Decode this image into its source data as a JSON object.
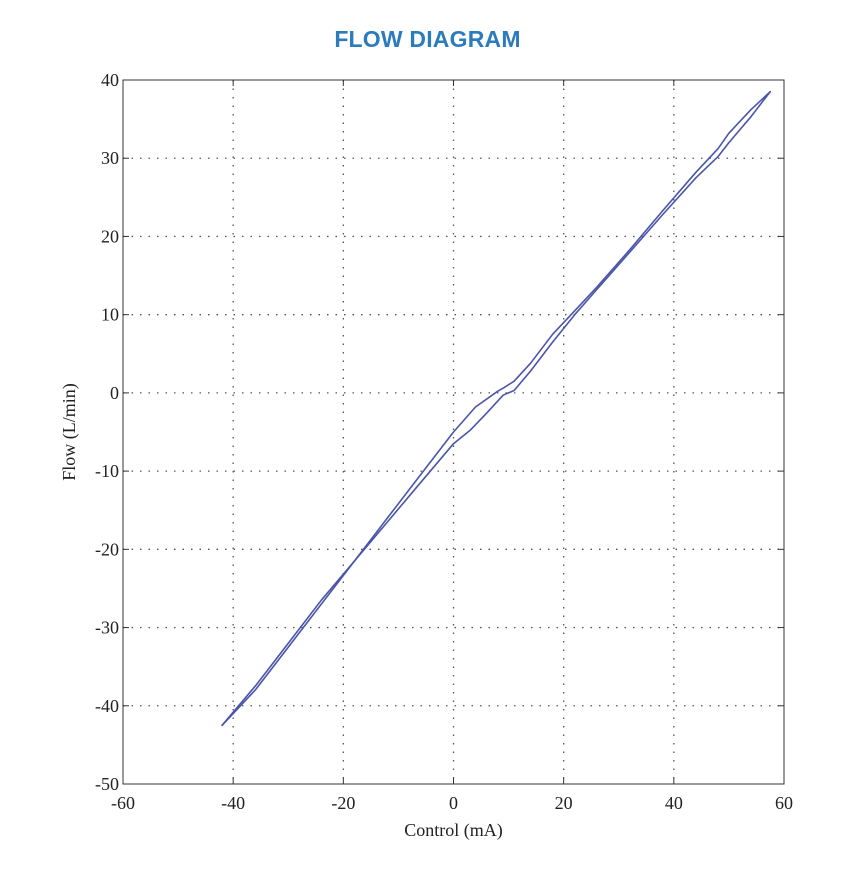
{
  "chart_data": {
    "type": "line",
    "title": "FLOW DIAGRAM",
    "xlabel": "Control (mA)",
    "ylabel": "Flow (L/min)",
    "xlim": [
      -60,
      60
    ],
    "ylim": [
      -50,
      40
    ],
    "xticks": [
      -60,
      -40,
      -20,
      0,
      20,
      40,
      60
    ],
    "yticks": [
      -50,
      -40,
      -30,
      -20,
      -10,
      0,
      10,
      20,
      30,
      40
    ],
    "grid": true,
    "legend": "none",
    "series": [
      {
        "color": "#4a55a8",
        "x": [
          -42,
          -36,
          -30,
          -24,
          -18,
          -12,
          -6,
          0,
          4,
          8,
          9,
          11,
          14,
          18,
          22,
          26,
          32,
          38,
          44,
          48,
          50,
          54,
          57.5
        ],
        "y": [
          -42.5,
          -37.5,
          -32,
          -26.5,
          -21.5,
          -16,
          -10.5,
          -5,
          -1.8,
          0.2,
          0.6,
          1.5,
          3.8,
          7.5,
          10.5,
          13.5,
          18.3,
          23.3,
          28.2,
          31.2,
          33.2,
          36.2,
          38.5
        ]
      },
      {
        "color": "#4a55a8",
        "x": [
          57.5,
          54,
          50,
          48,
          44,
          38,
          32,
          26,
          22,
          18,
          14,
          11,
          9,
          6,
          3,
          0,
          -6,
          -12,
          -18,
          -24,
          -30,
          -36,
          -42
        ],
        "y": [
          38.5,
          35.3,
          32,
          30.2,
          27.5,
          22.8,
          18,
          13.2,
          10,
          6.5,
          2.8,
          0.3,
          -0.3,
          -2.6,
          -4.8,
          -6.5,
          -11.5,
          -16.5,
          -21.5,
          -27,
          -32.5,
          -38,
          -42.5
        ]
      }
    ]
  }
}
